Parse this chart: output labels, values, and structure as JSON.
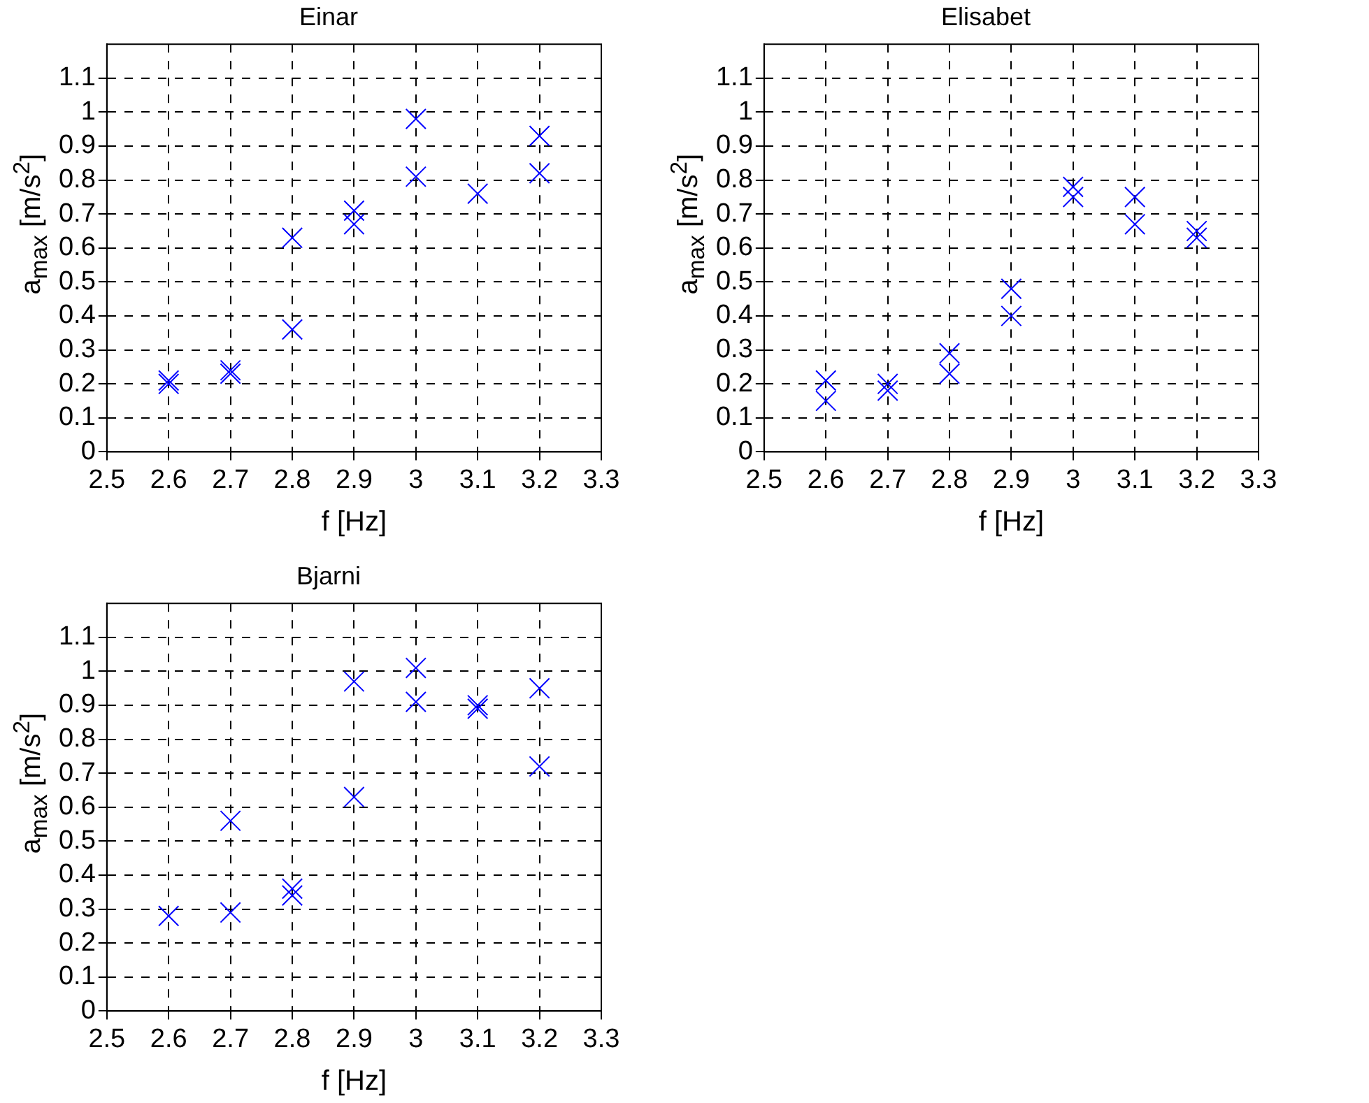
{
  "chart_data": [
    {
      "type": "scatter",
      "title": "Einar",
      "xlabel": "f [Hz]",
      "ylabel": "a$_{max}$ [m/s$^{2}$]",
      "xlim": [
        2.5,
        3.3
      ],
      "xticks": [
        2.5,
        2.6,
        2.7,
        2.8,
        2.9,
        3,
        3.1,
        3.2,
        3.3
      ],
      "ylim": [
        0,
        1.2
      ],
      "yticks": [
        0,
        0.1,
        0.2,
        0.3,
        0.4,
        0.5,
        0.6,
        0.7,
        0.8,
        0.9,
        1,
        1.1
      ],
      "grid": true,
      "legend": false,
      "marker": "cross",
      "series": [
        {
          "color": "#0000ff",
          "x": [
            2.6,
            2.6,
            2.7,
            2.7,
            2.8,
            2.8,
            2.9,
            2.9,
            3,
            3,
            3.1,
            3.2,
            3.2
          ],
          "values": [
            0.21,
            0.2,
            0.24,
            0.23,
            0.63,
            0.36,
            0.71,
            0.67,
            0.98,
            0.81,
            0.76,
            0.93,
            0.82
          ]
        }
      ]
    },
    {
      "type": "scatter",
      "title": "Elisabet",
      "xlabel": "f [Hz]",
      "ylabel": "a$_{max}$ [m/s$^{2}$]",
      "xlim": [
        2.5,
        3.3
      ],
      "xticks": [
        2.5,
        2.6,
        2.7,
        2.8,
        2.9,
        3,
        3.1,
        3.2,
        3.3
      ],
      "ylim": [
        0,
        1.2
      ],
      "yticks": [
        0,
        0.1,
        0.2,
        0.3,
        0.4,
        0.5,
        0.6,
        0.7,
        0.8,
        0.9,
        1,
        1.1
      ],
      "grid": true,
      "legend": false,
      "marker": "cross",
      "series": [
        {
          "color": "#0000ff",
          "x": [
            2.6,
            2.6,
            2.7,
            2.7,
            2.8,
            2.8,
            2.9,
            2.9,
            3,
            3,
            3.1,
            3.1,
            3.2,
            3.2
          ],
          "values": [
            0.21,
            0.15,
            0.2,
            0.18,
            0.29,
            0.23,
            0.48,
            0.4,
            0.78,
            0.75,
            0.75,
            0.67,
            0.65,
            0.63
          ]
        }
      ]
    },
    {
      "type": "scatter",
      "title": "Bjarni",
      "xlabel": "f [Hz]",
      "ylabel": "a$_{max}$ [m/s$^{2}$]",
      "xlim": [
        2.5,
        3.3
      ],
      "xticks": [
        2.5,
        2.6,
        2.7,
        2.8,
        2.9,
        3,
        3.1,
        3.2,
        3.3
      ],
      "ylim": [
        0,
        1.2
      ],
      "yticks": [
        0,
        0.1,
        0.2,
        0.3,
        0.4,
        0.5,
        0.6,
        0.7,
        0.8,
        0.9,
        1,
        1.1
      ],
      "grid": true,
      "legend": false,
      "marker": "cross",
      "series": [
        {
          "color": "#0000ff",
          "x": [
            2.6,
            2.7,
            2.7,
            2.8,
            2.8,
            2.9,
            2.9,
            3,
            3,
            3.1,
            3.1,
            3.2,
            3.2
          ],
          "values": [
            0.28,
            0.56,
            0.29,
            0.36,
            0.34,
            0.97,
            0.63,
            1.01,
            0.91,
            0.9,
            0.89,
            0.95,
            0.72
          ]
        }
      ]
    }
  ]
}
